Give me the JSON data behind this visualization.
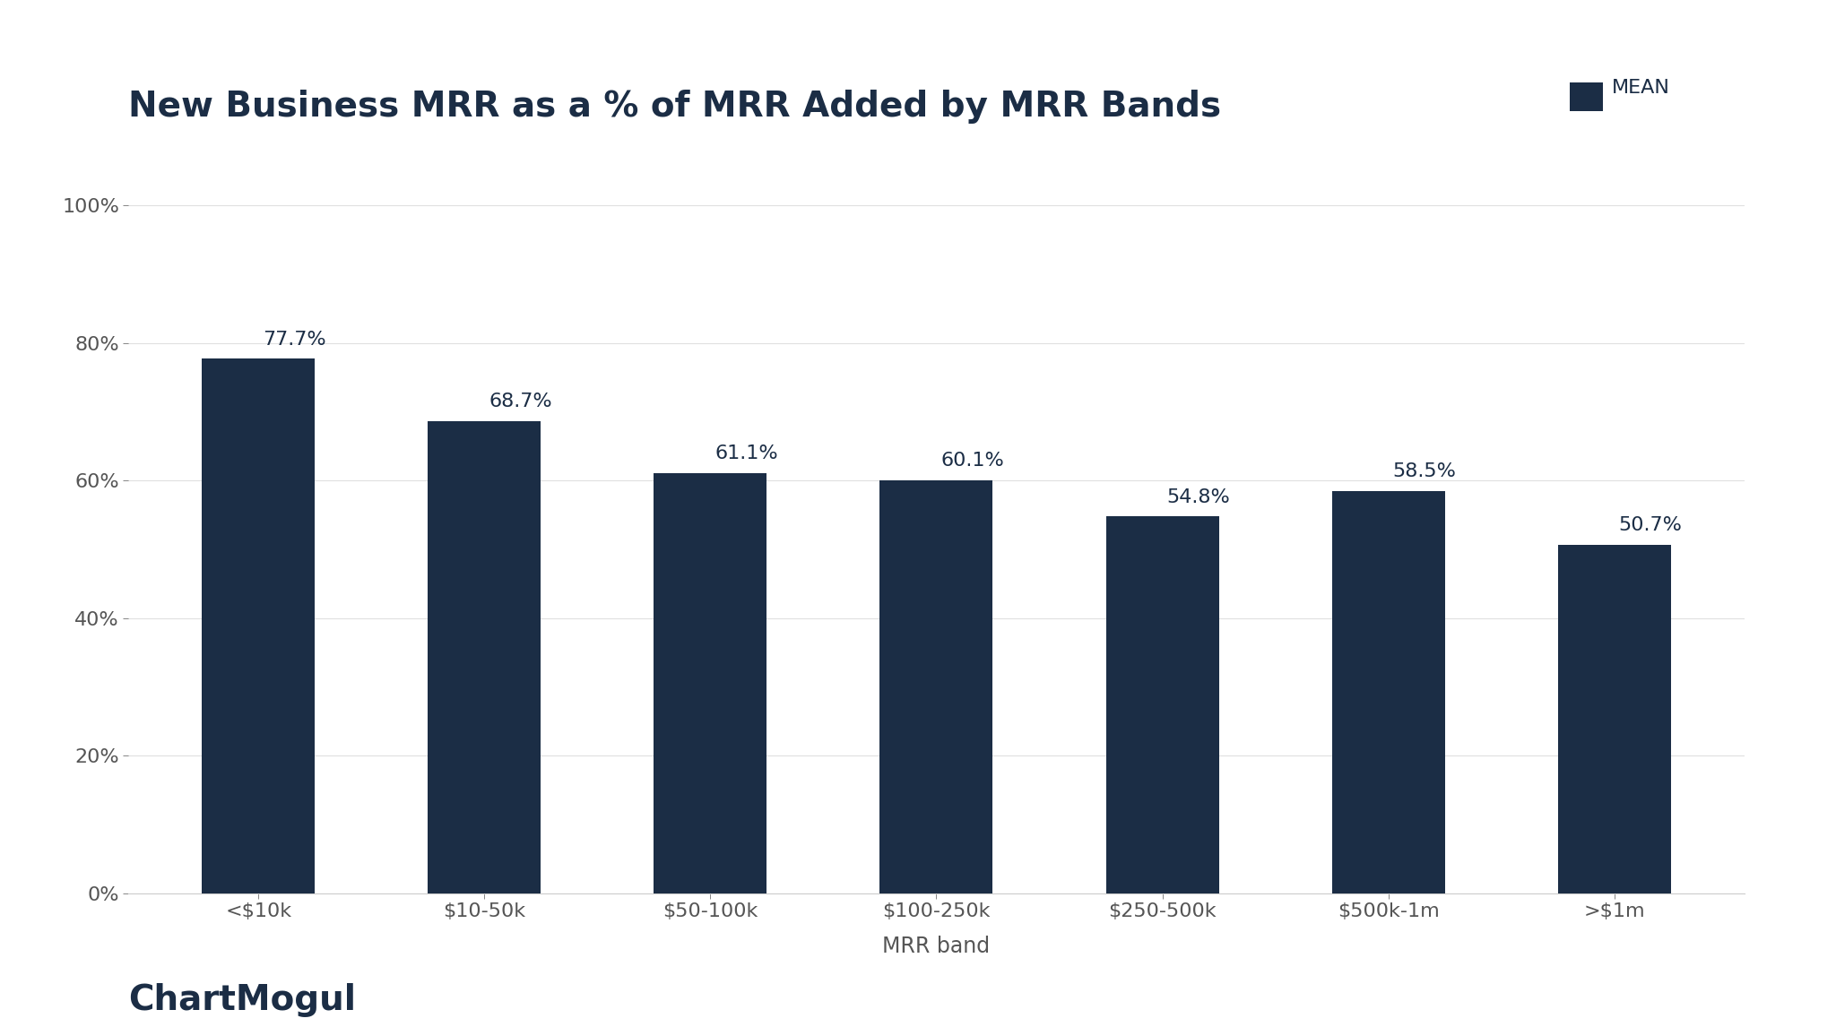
{
  "title": "New Business MRR as a % of MRR Added by MRR Bands",
  "categories": [
    "<$10k",
    "$10-50k",
    "$50-100k",
    "$100-250k",
    "$250-500k",
    "$500k-1m",
    ">$1m"
  ],
  "values": [
    77.7,
    68.7,
    61.1,
    60.1,
    54.8,
    58.5,
    50.7
  ],
  "bar_color": "#1b2d45",
  "background_color": "#ffffff",
  "xlabel": "MRR band",
  "ylim": [
    0,
    100
  ],
  "yticks": [
    0,
    20,
    40,
    60,
    80,
    100
  ],
  "legend_label": "MEAN",
  "legend_color": "#1b2d45",
  "title_color": "#1b2d45",
  "label_color": "#1b2d45",
  "tick_color": "#555555",
  "grid_color": "#e0e0e0",
  "spine_color": "#cccccc",
  "watermark": "ChartMogul",
  "watermark_color": "#1b2d45",
  "title_fontsize": 28,
  "tick_fontsize": 16,
  "annotation_fontsize": 16,
  "xlabel_fontsize": 17,
  "legend_fontsize": 16,
  "watermark_fontsize": 28,
  "bar_width": 0.5
}
